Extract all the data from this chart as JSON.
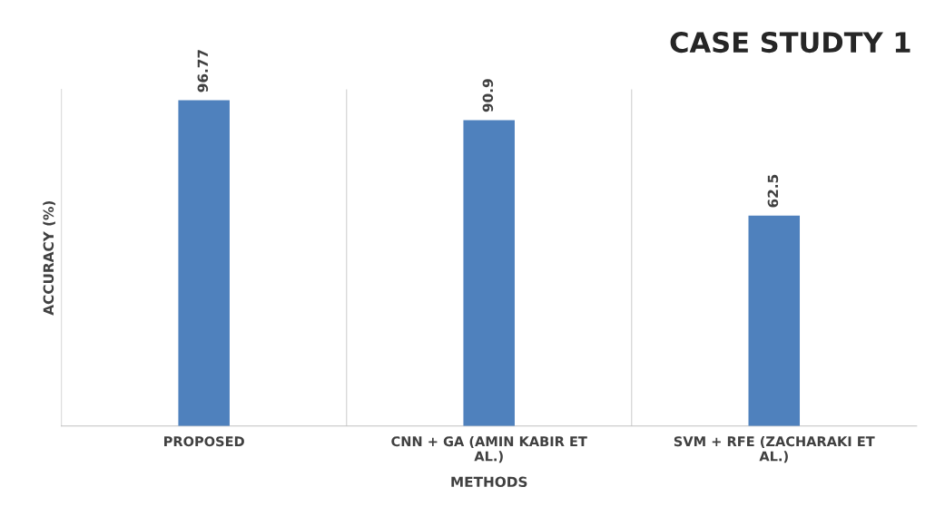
{
  "chart_data": {
    "type": "bar",
    "title": "CASE STUDTY 1",
    "xlabel": "METHODS",
    "ylabel": "ACCURACY (%)",
    "categories": [
      "PROPOSED",
      "CNN + GA (AMIN KABIR ET AL.)",
      "SVM + RFE (ZACHARAKI ET AL.)"
    ],
    "values": [
      96.77,
      90.9,
      62.5
    ],
    "color": "#4f81bd",
    "ylim": [
      0,
      100
    ],
    "data_labels": true,
    "grid": "x",
    "legend": false
  }
}
